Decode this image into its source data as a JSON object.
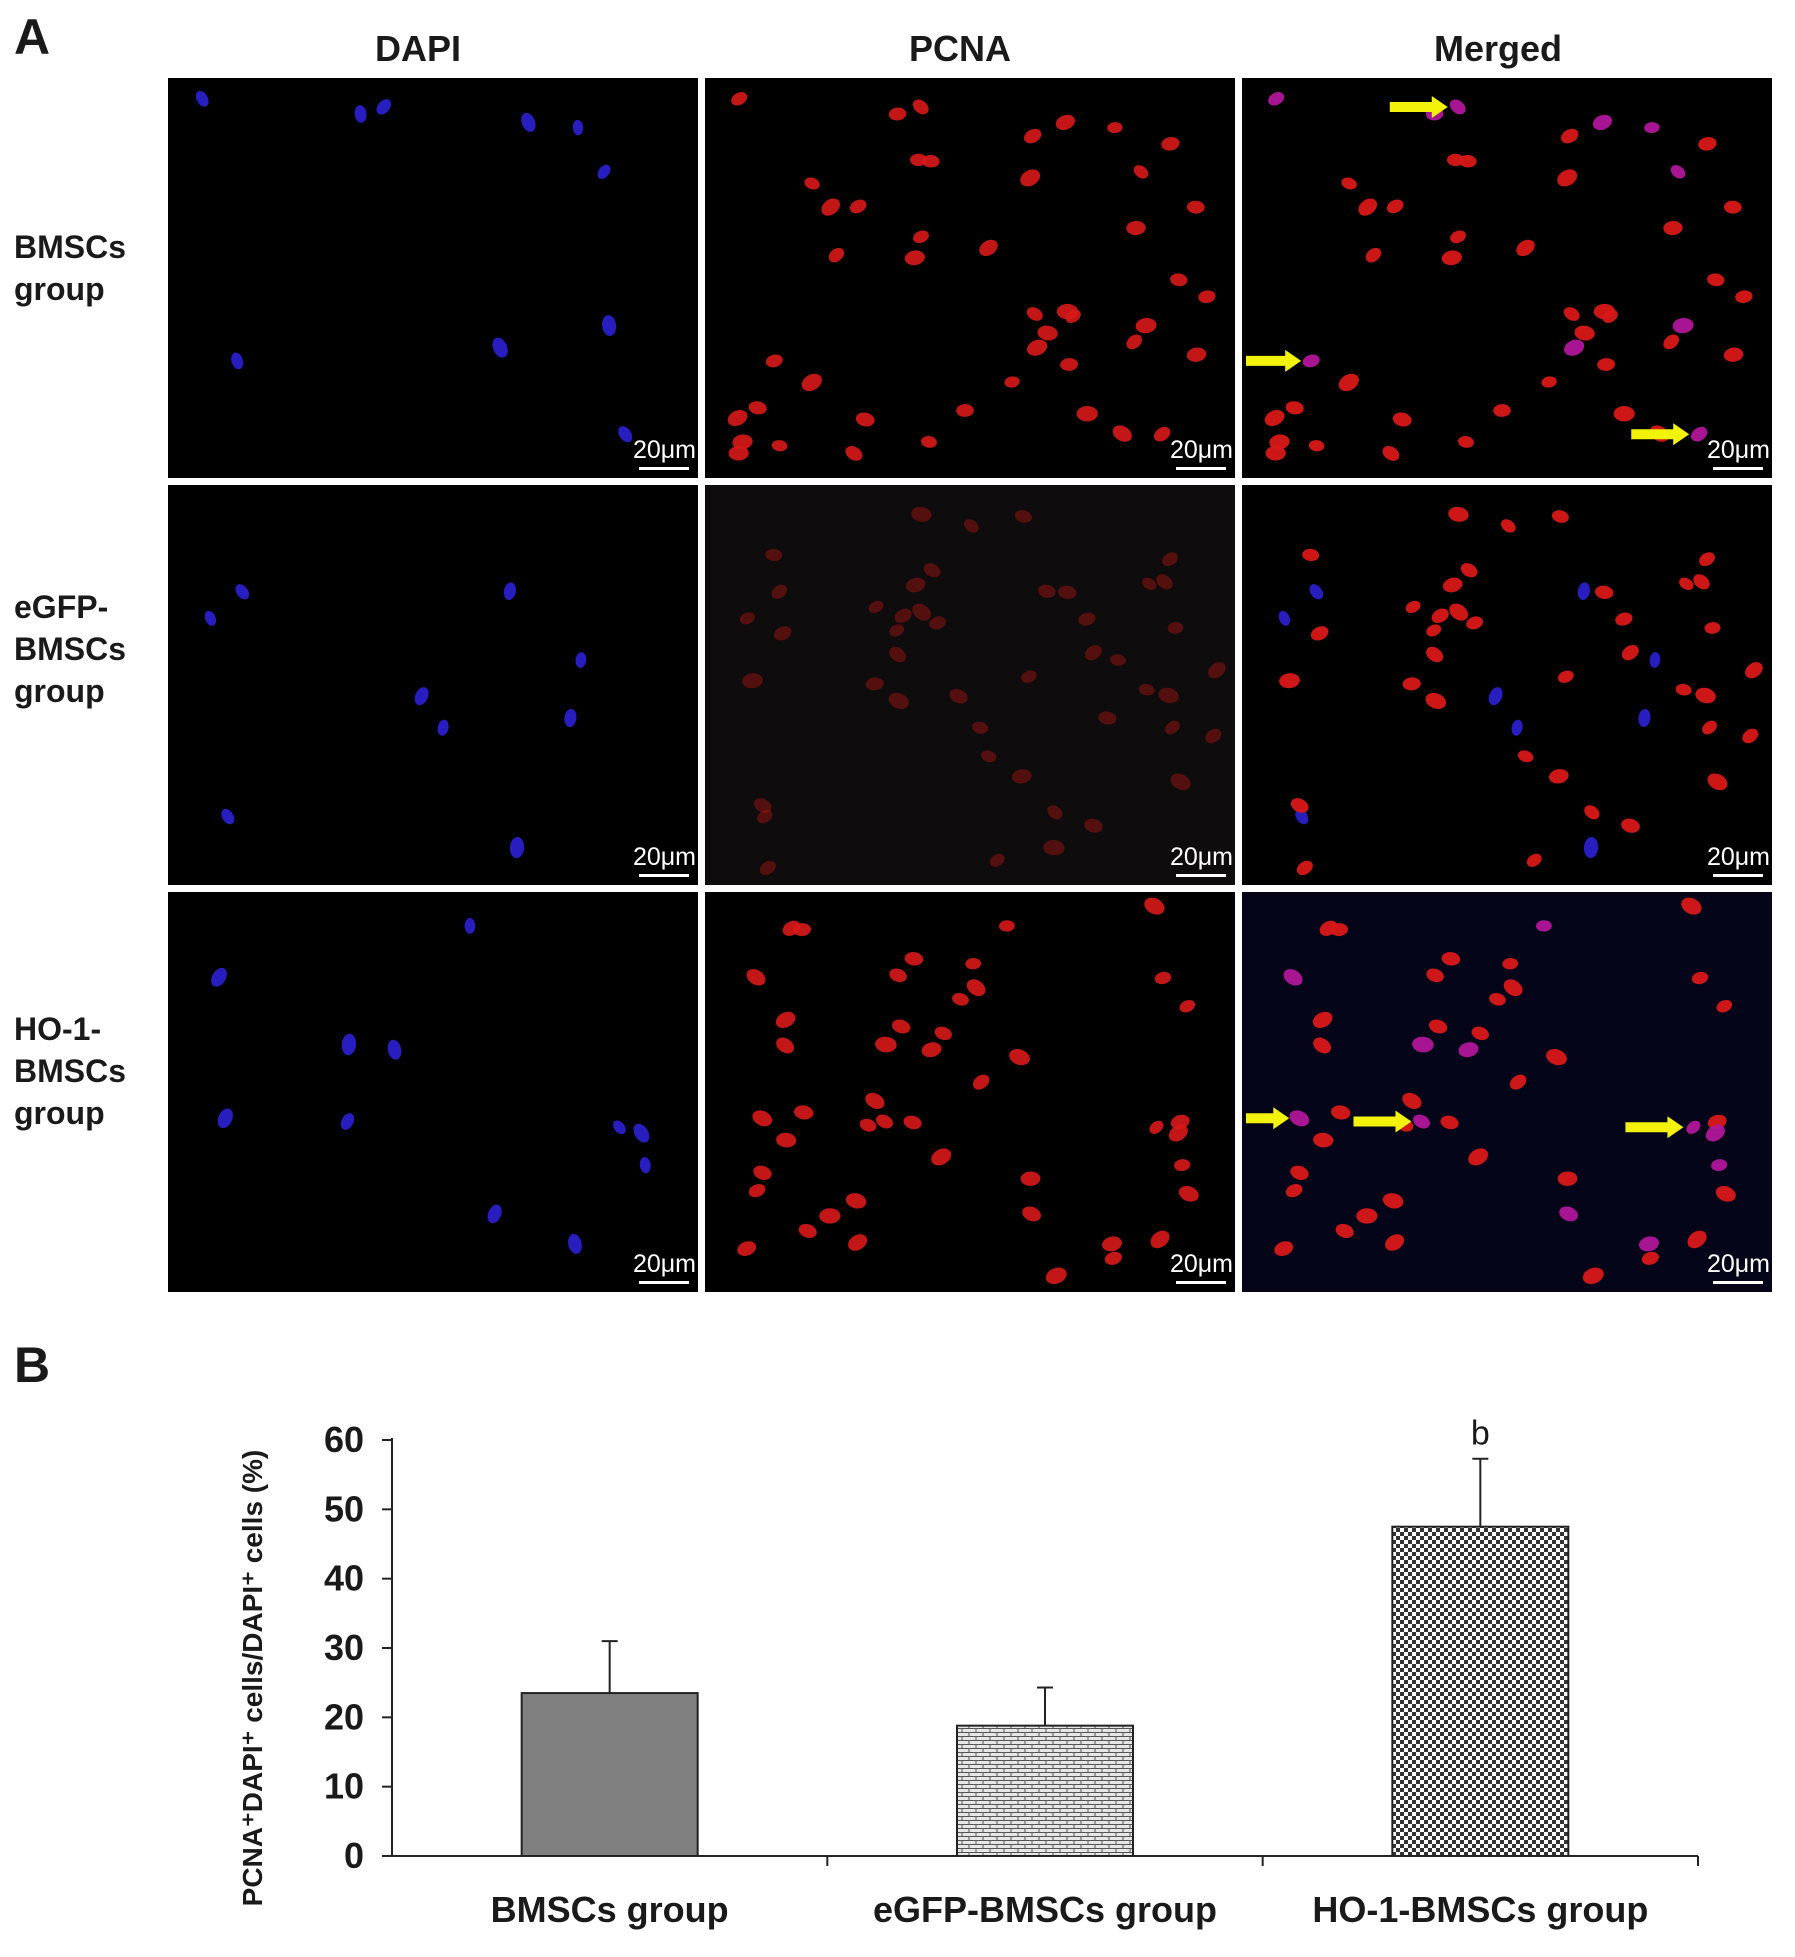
{
  "figure": {
    "panel_a_letter": "A",
    "panel_b_letter": "B",
    "columns": [
      "DAPI",
      "PCNA",
      "Merged"
    ],
    "rows": [
      {
        "lines": [
          "BMSCs",
          "group"
        ]
      },
      {
        "lines": [
          "eGFP-",
          "BMSCs",
          "group"
        ]
      },
      {
        "lines": [
          "HO-1-",
          "BMSCs",
          "group"
        ]
      }
    ],
    "scale_bar_label": "20μm",
    "colors": {
      "dapi_nucleus": "#2a1fc8",
      "pcna_nucleus": "#d81818",
      "colocalized_nucleus": "#b0169a",
      "arrow": "#f2f20a",
      "tile_background": "#000000"
    }
  },
  "chart_data": {
    "type": "bar",
    "categories": [
      "BMSCs group",
      "eGFP-BMSCs group",
      "HO-1-BMSCs group"
    ],
    "values": [
      23.5,
      18.8,
      47.5
    ],
    "error": [
      7.5,
      5.5,
      9.8
    ],
    "annotations": [
      "",
      "",
      "b"
    ],
    "ylim": [
      0,
      60
    ],
    "yticks": [
      0,
      10,
      20,
      30,
      40,
      50,
      60
    ],
    "ylabel": "PCNA⁺DAPI⁺ cells/DAPI⁺ cells (%)",
    "xlabel": "",
    "grid": false,
    "bar_fills": [
      "solid-gray",
      "brick",
      "checker"
    ]
  }
}
